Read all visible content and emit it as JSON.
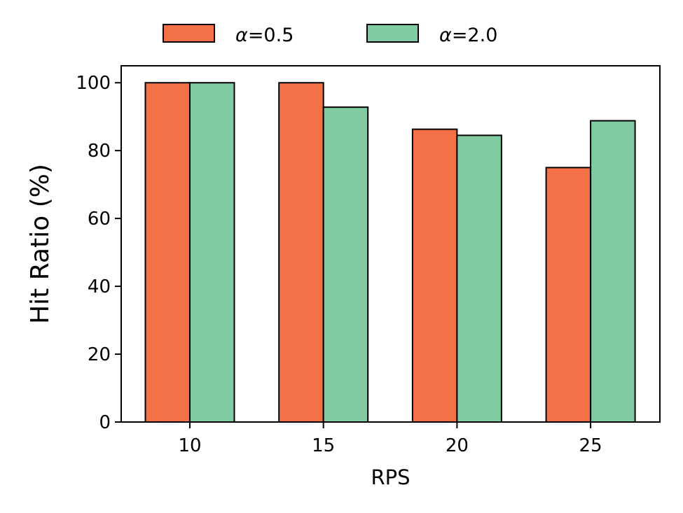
{
  "chart_data": {
    "type": "bar",
    "categories": [
      "10",
      "15",
      "20",
      "25"
    ],
    "series": [
      {
        "name": "α=0.5",
        "color": "#F47148",
        "values": [
          100,
          100,
          86.3,
          75.0
        ]
      },
      {
        "name": "α=2.0",
        "color": "#80CBA2",
        "values": [
          100,
          92.8,
          84.5,
          88.8
        ]
      }
    ],
    "title": "",
    "xlabel": "RPS",
    "ylabel": "Hit Ratio (%)",
    "ylim": [
      0,
      105
    ],
    "yticks": [
      "0",
      "20",
      "40",
      "60",
      "80",
      "100"
    ],
    "grid": false,
    "legend_position": "top-center, outside plot"
  }
}
